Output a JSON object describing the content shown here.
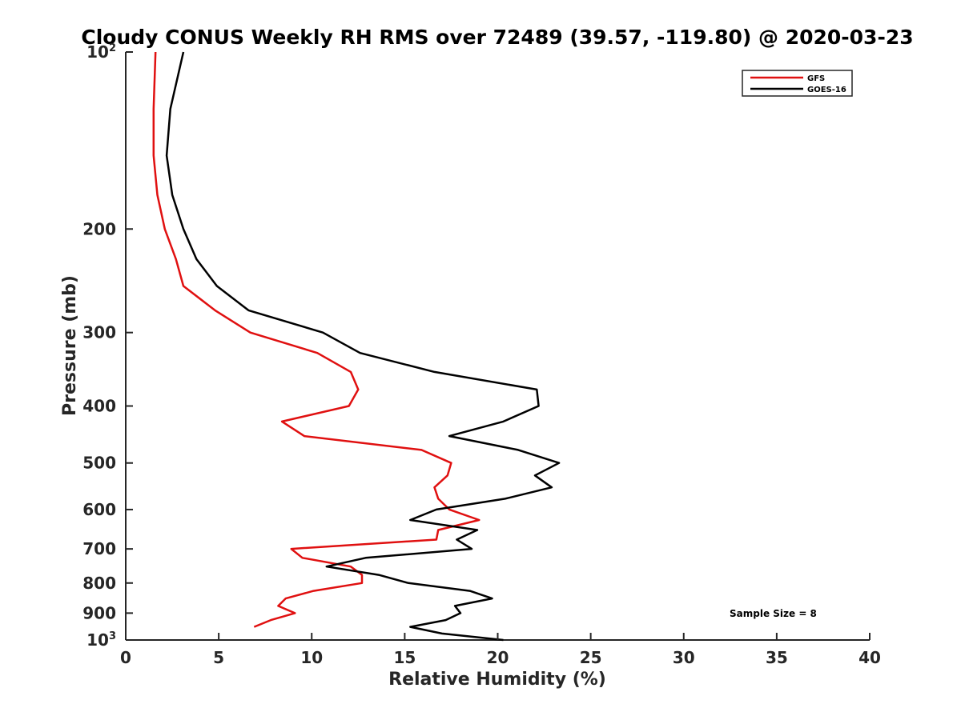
{
  "chart_data": {
    "type": "line",
    "title": "Cloudy CONUS Weekly RH RMS over 72489 (39.57, -119.80) @ 2020-03-23",
    "xlabel": "Relative Humidity (%)",
    "ylabel": "Pressure (mb)",
    "xlim": [
      0,
      40
    ],
    "ylim": [
      100,
      1000
    ],
    "y_scale": "log",
    "y_reversed": true,
    "grid": false,
    "legend_position": "top-right",
    "x_ticks": [
      {
        "value": 0,
        "label": "0"
      },
      {
        "value": 5,
        "label": "5"
      },
      {
        "value": 10,
        "label": "10"
      },
      {
        "value": 15,
        "label": "15"
      },
      {
        "value": 20,
        "label": "20"
      },
      {
        "value": 25,
        "label": "25"
      },
      {
        "value": 30,
        "label": "30"
      },
      {
        "value": 35,
        "label": "35"
      },
      {
        "value": 40,
        "label": "40"
      }
    ],
    "y_ticks": [
      {
        "value": 100,
        "base": "10",
        "exp": "2"
      },
      {
        "value": 200,
        "label": "200"
      },
      {
        "value": 300,
        "label": "300"
      },
      {
        "value": 400,
        "label": "400"
      },
      {
        "value": 500,
        "label": "500"
      },
      {
        "value": 600,
        "label": "600"
      },
      {
        "value": 700,
        "label": "700"
      },
      {
        "value": 800,
        "label": "800"
      },
      {
        "value": 900,
        "label": "900"
      },
      {
        "value": 1000,
        "base": "10",
        "exp": "3"
      }
    ],
    "series": [
      {
        "name": "GFS",
        "color": "#e01010",
        "points": [
          [
            1.6,
            100
          ],
          [
            1.5,
            125
          ],
          [
            1.5,
            150
          ],
          [
            1.7,
            175
          ],
          [
            2.1,
            200
          ],
          [
            2.7,
            225
          ],
          [
            3.1,
            250
          ],
          [
            4.8,
            275
          ],
          [
            6.7,
            300
          ],
          [
            10.3,
            325
          ],
          [
            12.1,
            350
          ],
          [
            12.5,
            375
          ],
          [
            12.0,
            400
          ],
          [
            8.4,
            425
          ],
          [
            9.6,
            450
          ],
          [
            15.9,
            475
          ],
          [
            17.5,
            500
          ],
          [
            17.3,
            525
          ],
          [
            16.6,
            550
          ],
          [
            16.8,
            575
          ],
          [
            17.4,
            600
          ],
          [
            19.0,
            625
          ],
          [
            16.8,
            650
          ],
          [
            16.7,
            675
          ],
          [
            8.9,
            700
          ],
          [
            9.5,
            725
          ],
          [
            12.1,
            750
          ],
          [
            12.7,
            775
          ],
          [
            12.7,
            800
          ],
          [
            10.1,
            825
          ],
          [
            8.6,
            850
          ],
          [
            8.2,
            875
          ],
          [
            9.1,
            900
          ],
          [
            7.8,
            925
          ],
          [
            6.9,
            950
          ]
        ]
      },
      {
        "name": "GOES-16",
        "color": "#000000",
        "points": [
          [
            3.1,
            100
          ],
          [
            2.4,
            125
          ],
          [
            2.2,
            150
          ],
          [
            2.5,
            175
          ],
          [
            3.1,
            200
          ],
          [
            3.8,
            225
          ],
          [
            4.9,
            250
          ],
          [
            6.6,
            275
          ],
          [
            10.6,
            300
          ],
          [
            12.6,
            325
          ],
          [
            16.6,
            350
          ],
          [
            22.1,
            375
          ],
          [
            22.2,
            400
          ],
          [
            20.3,
            425
          ],
          [
            17.4,
            450
          ],
          [
            21.1,
            475
          ],
          [
            23.3,
            500
          ],
          [
            22.0,
            525
          ],
          [
            22.9,
            550
          ],
          [
            20.4,
            575
          ],
          [
            16.7,
            600
          ],
          [
            15.3,
            625
          ],
          [
            18.9,
            650
          ],
          [
            17.8,
            675
          ],
          [
            18.6,
            700
          ],
          [
            12.9,
            725
          ],
          [
            10.8,
            750
          ],
          [
            13.6,
            775
          ],
          [
            15.2,
            800
          ],
          [
            18.5,
            825
          ],
          [
            19.7,
            850
          ],
          [
            17.7,
            875
          ],
          [
            18.0,
            900
          ],
          [
            17.2,
            925
          ],
          [
            15.3,
            950
          ],
          [
            17.0,
            975
          ],
          [
            20.3,
            1000
          ]
        ]
      }
    ],
    "annotations": [
      {
        "text": "Sample Size = 8"
      }
    ]
  }
}
